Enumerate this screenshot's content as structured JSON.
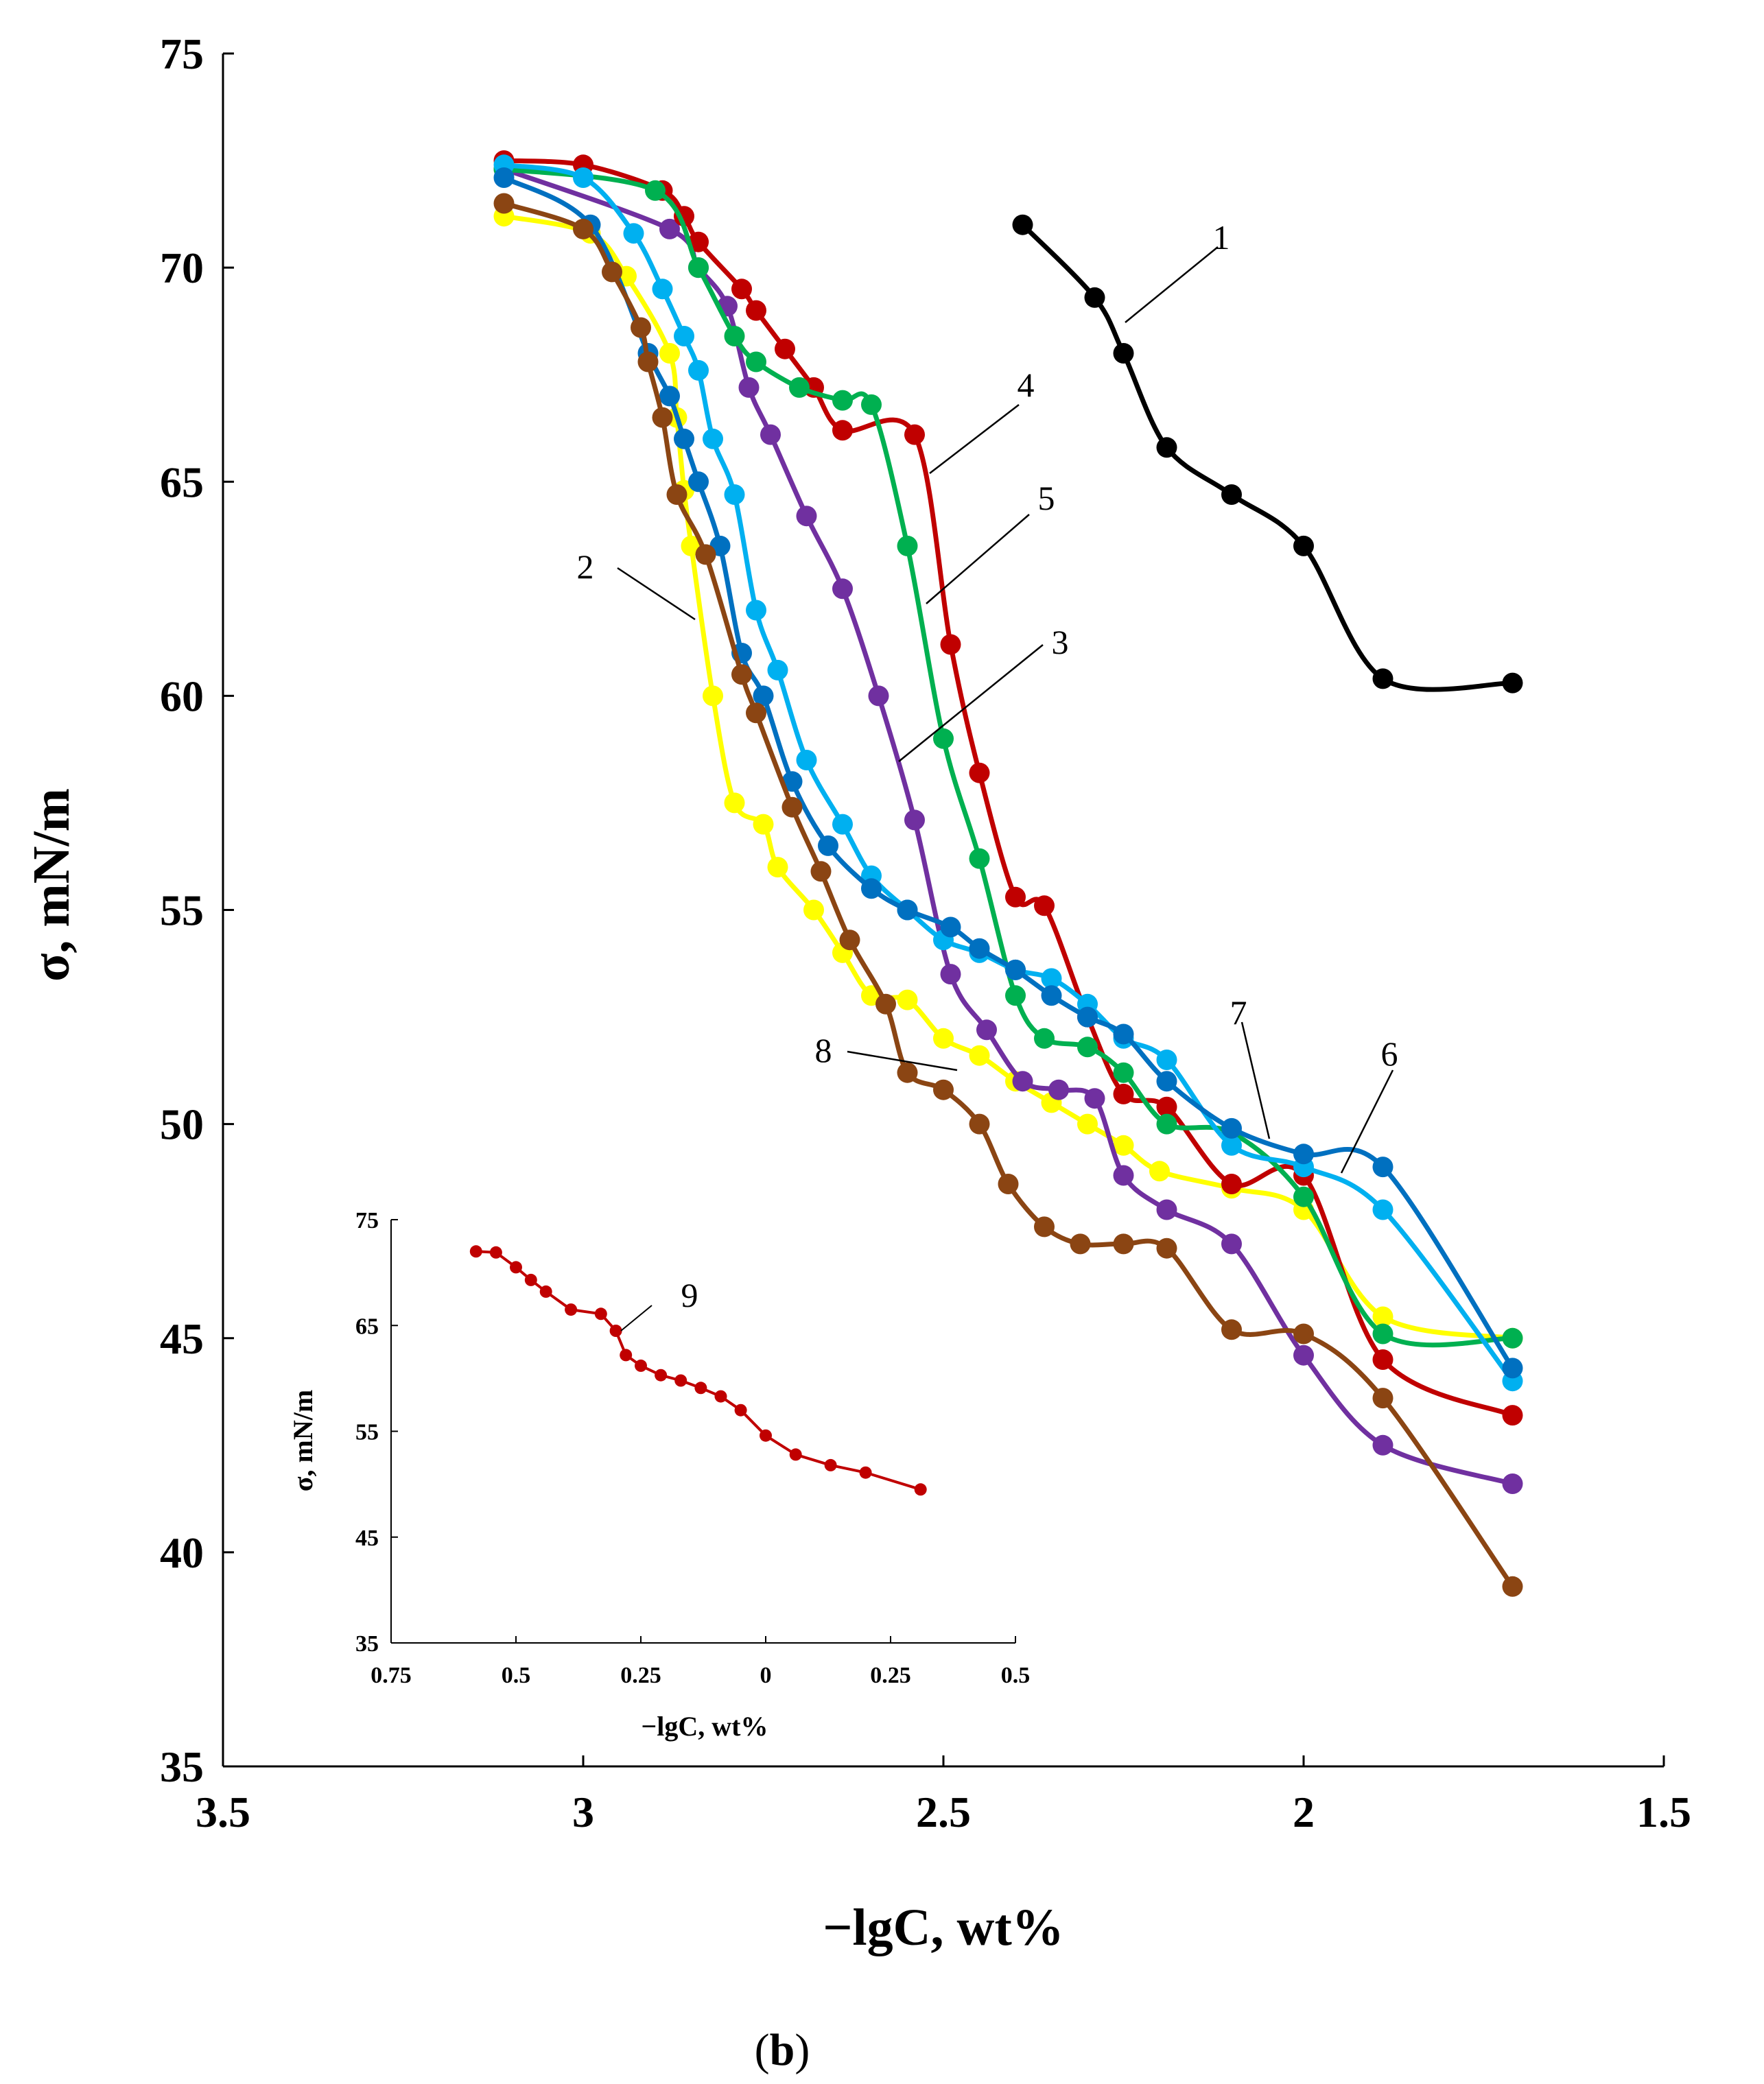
{
  "chart_data": [
    {
      "type": "line",
      "title": "",
      "xlabel": "−lgC, wt%",
      "ylabel": "σ, mN/m",
      "xlim": [
        3.5,
        1.5
      ],
      "ylim": [
        35,
        75
      ],
      "x_reversed": true,
      "x_ticks": [
        "3.5",
        "3",
        "2.5",
        "2",
        "1.5"
      ],
      "y_ticks": [
        "35",
        "40",
        "45",
        "50",
        "55",
        "60",
        "65",
        "70",
        "75"
      ],
      "grid": false,
      "legend": "none",
      "series": [
        {
          "name": "1",
          "color": "#000000",
          "x": [
            2.39,
            2.29,
            2.25,
            2.19,
            2.1,
            2.0,
            1.89,
            1.71
          ],
          "y": [
            71.0,
            69.3,
            68.0,
            65.8,
            64.7,
            63.5,
            60.4,
            60.3
          ]
        },
        {
          "name": "2",
          "color": "#ffff00",
          "x": [
            3.11,
            2.99,
            2.94,
            2.88,
            2.87,
            2.86,
            2.85,
            2.82,
            2.79,
            2.75,
            2.73,
            2.68,
            2.64,
            2.6,
            2.55,
            2.5,
            2.45,
            2.4,
            2.35,
            2.3,
            2.25,
            2.2,
            2.1,
            2.0,
            1.89,
            1.71
          ],
          "y": [
            71.2,
            70.8,
            69.8,
            68.0,
            66.5,
            64.8,
            63.5,
            60.0,
            57.5,
            57.0,
            56.0,
            55.0,
            54.0,
            53.0,
            52.9,
            52.0,
            51.6,
            51.0,
            50.5,
            50.0,
            49.5,
            48.9,
            48.5,
            48.0,
            45.5,
            45.0
          ]
        },
        {
          "name": "3",
          "color": "#7030a0",
          "x": [
            3.11,
            2.88,
            2.84,
            2.8,
            2.77,
            2.74,
            2.69,
            2.64,
            2.59,
            2.54,
            2.49,
            2.44,
            2.39,
            2.34,
            2.29,
            2.25,
            2.19,
            2.1,
            2.0,
            1.89,
            1.71
          ],
          "y": [
            72.3,
            70.9,
            70.0,
            69.1,
            67.2,
            66.1,
            64.2,
            62.5,
            60.0,
            57.1,
            53.5,
            52.2,
            51.0,
            50.8,
            50.6,
            48.8,
            48.0,
            47.2,
            44.6,
            42.5,
            41.6
          ]
        },
        {
          "name": "4",
          "color": "#c00000",
          "x": [
            3.11,
            3.0,
            2.89,
            2.86,
            2.84,
            2.78,
            2.76,
            2.72,
            2.68,
            2.64,
            2.54,
            2.49,
            2.45,
            2.4,
            2.36,
            2.3,
            2.25,
            2.19,
            2.1,
            2.0,
            1.89,
            1.71
          ],
          "y": [
            72.5,
            72.4,
            71.8,
            71.2,
            70.6,
            69.5,
            69.0,
            68.1,
            67.2,
            66.2,
            66.1,
            61.2,
            58.2,
            55.3,
            55.1,
            52.5,
            50.7,
            50.4,
            48.6,
            48.8,
            44.5,
            43.2
          ]
        },
        {
          "name": "5",
          "color": "#00b050",
          "x": [
            3.11,
            2.9,
            2.84,
            2.79,
            2.76,
            2.7,
            2.64,
            2.6,
            2.55,
            2.5,
            2.45,
            2.4,
            2.36,
            2.3,
            2.25,
            2.19,
            2.1,
            2.0,
            1.89,
            1.71
          ],
          "y": [
            72.3,
            71.8,
            70.0,
            68.4,
            67.8,
            67.2,
            66.9,
            66.8,
            63.5,
            59.0,
            56.2,
            53.0,
            52.0,
            51.8,
            51.2,
            50.0,
            49.8,
            48.3,
            45.1,
            45.0
          ]
        },
        {
          "name": "6",
          "color": "#00b0f0",
          "x": [
            3.11,
            3.0,
            2.93,
            2.89,
            2.86,
            2.84,
            2.82,
            2.79,
            2.76,
            2.73,
            2.69,
            2.64,
            2.6,
            2.55,
            2.5,
            2.45,
            2.4,
            2.35,
            2.3,
            2.25,
            2.19,
            2.1,
            2.0,
            1.89,
            1.71
          ],
          "y": [
            72.4,
            72.1,
            70.8,
            69.5,
            68.4,
            67.6,
            66.0,
            64.7,
            62.0,
            60.6,
            58.5,
            57.0,
            55.8,
            55.0,
            54.3,
            54.0,
            53.6,
            53.4,
            52.8,
            52.0,
            51.5,
            49.5,
            49.0,
            48.0,
            44.0
          ]
        },
        {
          "name": "7",
          "color": "#0070c0",
          "x": [
            3.11,
            2.99,
            2.91,
            2.88,
            2.86,
            2.84,
            2.81,
            2.78,
            2.75,
            2.71,
            2.66,
            2.6,
            2.55,
            2.49,
            2.45,
            2.4,
            2.35,
            2.3,
            2.25,
            2.19,
            2.1,
            2.0,
            1.89,
            1.71
          ],
          "y": [
            72.1,
            71.0,
            68.0,
            67.0,
            66.0,
            65.0,
            63.5,
            61.0,
            60.0,
            58.0,
            56.5,
            55.5,
            55.0,
            54.6,
            54.1,
            53.6,
            53.0,
            52.5,
            52.1,
            51.0,
            49.9,
            49.3,
            49.0,
            44.3
          ]
        },
        {
          "name": "8",
          "color": "#8b4513",
          "x": [
            3.11,
            3.0,
            2.96,
            2.92,
            2.91,
            2.89,
            2.87,
            2.83,
            2.78,
            2.76,
            2.71,
            2.67,
            2.63,
            2.58,
            2.55,
            2.5,
            2.45,
            2.41,
            2.36,
            2.31,
            2.25,
            2.19,
            2.1,
            2.0,
            1.89,
            1.71
          ],
          "y": [
            71.5,
            70.9,
            69.9,
            68.6,
            67.8,
            66.5,
            64.7,
            63.3,
            60.5,
            59.6,
            57.4,
            55.9,
            54.3,
            52.8,
            51.2,
            50.8,
            50.0,
            48.6,
            47.6,
            47.2,
            47.2,
            47.1,
            45.2,
            45.1,
            43.6,
            39.2
          ]
        }
      ],
      "annotations": [
        "1",
        "2",
        "3",
        "4",
        "5",
        "6",
        "7",
        "8"
      ],
      "panel_label": {
        "open": "(",
        "letter": "b",
        "close": ")"
      }
    },
    {
      "type": "line",
      "title": "",
      "xlabel": "−lgC, wt%",
      "ylabel": "σ, mN/m",
      "xlim": [
        -0.75,
        0.5
      ],
      "ylim": [
        35,
        75
      ],
      "x_reversed": false,
      "x_ticks": [
        "0.75",
        "0.5",
        "0.25",
        "0",
        "0.25",
        "0.5"
      ],
      "y_ticks": [
        "35",
        "45",
        "55",
        "65",
        "75"
      ],
      "grid": false,
      "legend": "none",
      "series": [
        {
          "name": "9",
          "color": "#c00000",
          "x": [
            -0.58,
            -0.54,
            -0.5,
            -0.47,
            -0.44,
            -0.39,
            -0.33,
            -0.3,
            -0.28,
            -0.25,
            -0.21,
            -0.17,
            -0.13,
            -0.09,
            -0.05,
            0.0,
            0.06,
            0.13,
            0.2,
            0.31
          ],
          "y": [
            72.0,
            71.9,
            70.5,
            69.3,
            68.2,
            66.5,
            66.1,
            64.5,
            62.2,
            61.2,
            60.3,
            59.8,
            59.1,
            58.3,
            57.0,
            54.6,
            52.8,
            51.8,
            51.1,
            49.5
          ]
        }
      ],
      "annotations": [
        "9"
      ]
    }
  ]
}
